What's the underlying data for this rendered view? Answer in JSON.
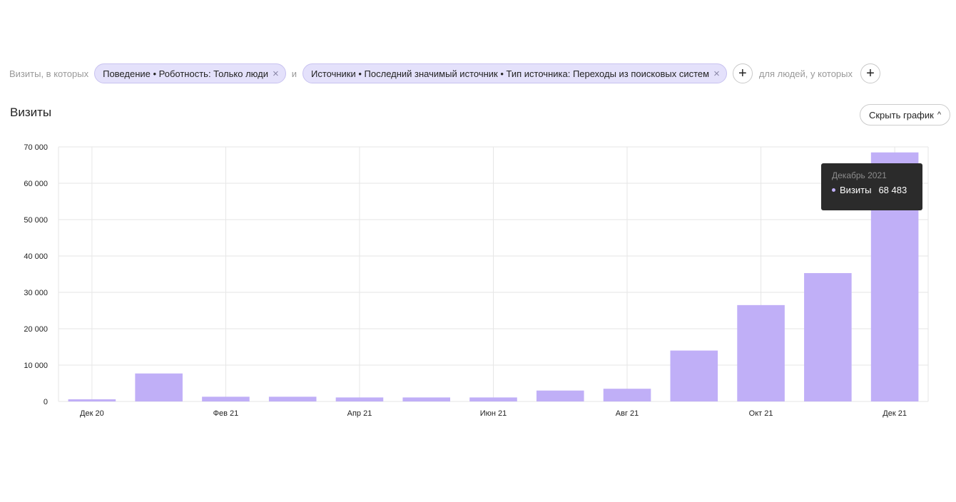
{
  "filters": {
    "prefix": "Визиты, в которых",
    "conjunction": "и",
    "chips": [
      {
        "label": "Поведение • Роботность: Только люди",
        "close": "×"
      },
      {
        "label": "Источники • Последний значимый источник • Тип источника: Переходы из поисковых систем",
        "close": "×"
      }
    ],
    "add_symbol": "+",
    "people_label": "для людей, у которых"
  },
  "header": {
    "title": "Визиты",
    "hide_button": "Скрыть график",
    "hide_chevron": "^"
  },
  "tooltip": {
    "period": "Декабрь 2021",
    "metric": "Визиты",
    "value": "68 483"
  },
  "colors": {
    "bar": "#c0aff7",
    "grid": "#e6e6e6"
  },
  "chart_data": {
    "type": "bar",
    "title": "Визиты",
    "ylim": [
      0,
      70000
    ],
    "yticks": [
      0,
      10000,
      20000,
      30000,
      40000,
      50000,
      60000,
      70000
    ],
    "ytick_labels": [
      "0",
      "10 000",
      "20 000",
      "30 000",
      "40 000",
      "50 000",
      "60 000",
      "70 000"
    ],
    "categories": [
      "Дек 20",
      "Янв 21",
      "Фев 21",
      "Мар 21",
      "Апр 21",
      "Май 21",
      "Июн 21",
      "Июл 21",
      "Авг 21",
      "Сен 21",
      "Окт 21",
      "Ноя 21",
      "Дек 21"
    ],
    "xtick_labels": [
      "Дек 20",
      "",
      "Фев 21",
      "",
      "Апр 21",
      "",
      "Июн 21",
      "",
      "Авг 21",
      "",
      "Окт 21",
      "",
      "Дек 21"
    ],
    "series": [
      {
        "name": "Визиты",
        "values": [
          600,
          7700,
          1300,
          1300,
          1100,
          1100,
          1100,
          3000,
          3500,
          14000,
          26500,
          35300,
          68483
        ]
      }
    ],
    "grid": true,
    "legend": "none"
  }
}
